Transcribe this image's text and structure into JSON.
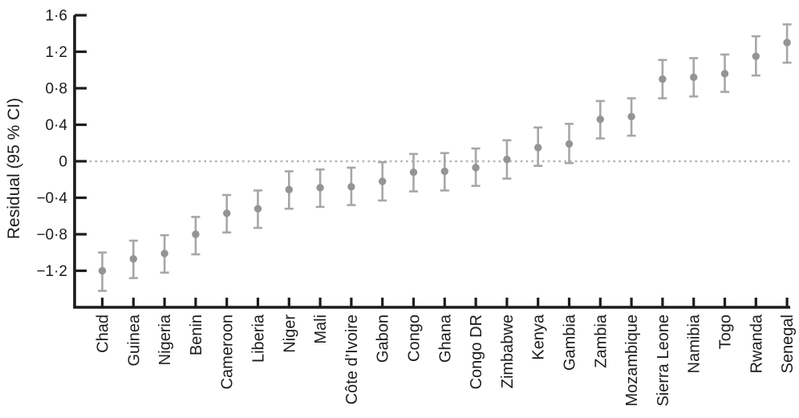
{
  "figure": {
    "background": "#ffffff"
  },
  "chart_data": {
    "type": "scatter",
    "subtype": "point-with-95ci-error-bars",
    "title": "",
    "xlabel": "",
    "ylabel": "Residual (95 % CI)",
    "ylim": [
      -1.6,
      1.6
    ],
    "grid": false,
    "legend": "none",
    "zero_line": {
      "value": 0,
      "style": "dotted"
    },
    "ytick_values": [
      1.6,
      1.2,
      0.8,
      0.4,
      0,
      -0.4,
      -0.8,
      -1.2
    ],
    "ytick_labels": [
      "1·6",
      "1·2",
      "0·8",
      "0·4",
      "0",
      "−0·4",
      "−0·8",
      "−1·2"
    ],
    "categories": [
      "Chad",
      "Guinea",
      "Nigeria",
      "Benin",
      "Cameroon",
      "Liberia",
      "Niger",
      "Mali",
      "Côte d’Ivoire",
      "Gabon",
      "Congo",
      "Ghana",
      "Congo DR",
      "Zimbabwe",
      "Kenya",
      "Gambia",
      "Zambia",
      "Mozambique",
      "Sierra Leone",
      "Namibia",
      "Togo",
      "Rwanda",
      "Senegal"
    ],
    "series": [
      {
        "name": "Residual",
        "values": [
          -1.2,
          -1.07,
          -1.01,
          -0.8,
          -0.57,
          -0.52,
          -0.31,
          -0.29,
          -0.28,
          -0.22,
          -0.12,
          -0.11,
          -0.07,
          0.02,
          0.15,
          0.19,
          0.46,
          0.49,
          0.9,
          0.92,
          0.96,
          1.15,
          1.3
        ],
        "ci_low": [
          -1.42,
          -1.28,
          -1.22,
          -1.02,
          -0.78,
          -0.73,
          -0.52,
          -0.5,
          -0.48,
          -0.43,
          -0.33,
          -0.32,
          -0.27,
          -0.19,
          -0.05,
          -0.02,
          0.25,
          0.28,
          0.69,
          0.71,
          0.76,
          0.94,
          1.08
        ],
        "ci_high": [
          -1.0,
          -0.87,
          -0.81,
          -0.61,
          -0.37,
          -0.32,
          -0.11,
          -0.09,
          -0.07,
          -0.01,
          0.08,
          0.09,
          0.14,
          0.23,
          0.37,
          0.41,
          0.66,
          0.69,
          1.11,
          1.13,
          1.17,
          1.37,
          1.5
        ]
      }
    ],
    "colors": {
      "marker": "#949494",
      "error_bar": "#a7a7a7",
      "zero_line": "#b4b4b4",
      "axis": "#1c1c1c",
      "text": "#1c1c1c"
    }
  }
}
